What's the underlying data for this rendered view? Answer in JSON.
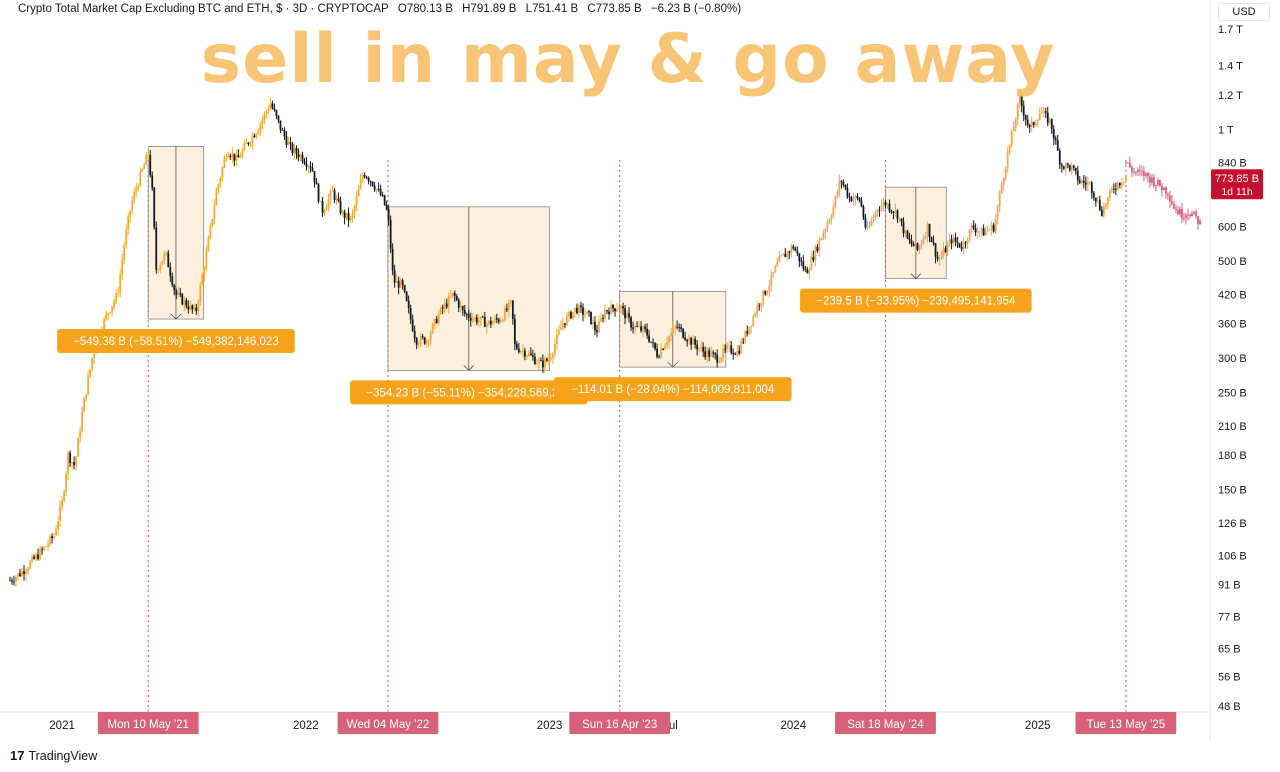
{
  "header": {
    "title": "Crypto Total Market Cap Excluding BTC and ETH, $ · 3D · CRYPTOCAP",
    "open_label": "O",
    "open": "780.13 B",
    "high_label": "H",
    "high": "791.89 B",
    "low_label": "L",
    "low": "751.41 B",
    "close_label": "C",
    "close": "773.85 B",
    "change": "−6.23 B (−0.80%)"
  },
  "overlay_title": "sell in may & go away",
  "currency": "USD",
  "price_badge": {
    "value": "773.85 B",
    "countdown": "1d 11h"
  },
  "footer": {
    "brand": "TradingView",
    "logo_glyph": "17"
  },
  "colors": {
    "accent": "#f7a21b",
    "candle": "#131722",
    "candle_up": "#f2a93b",
    "projection": "#d9607a",
    "vline": "#d9607a",
    "box_fill": "#fcefd9",
    "badge": "#c4102e"
  },
  "chart_data": {
    "type": "line",
    "title": "Crypto Total Market Cap Excluding BTC and ETH",
    "y_scale": "log",
    "ylim": [
      47,
      1800
    ],
    "y_ticks": [
      {
        "v": 1700,
        "label": "1.7 T"
      },
      {
        "v": 1400,
        "label": "1.4 T"
      },
      {
        "v": 1200,
        "label": "1.2 T"
      },
      {
        "v": 1000,
        "label": "1 T"
      },
      {
        "v": 840,
        "label": "840 B"
      },
      {
        "v": 600,
        "label": "600 B"
      },
      {
        "v": 500,
        "label": "500 B"
      },
      {
        "v": 420,
        "label": "420 B"
      },
      {
        "v": 360,
        "label": "360 B"
      },
      {
        "v": 300,
        "label": "300 B"
      },
      {
        "v": 250,
        "label": "250 B"
      },
      {
        "v": 210,
        "label": "210 B"
      },
      {
        "v": 180,
        "label": "180 B"
      },
      {
        "v": 150,
        "label": "150 B"
      },
      {
        "v": 126,
        "label": "126 B"
      },
      {
        "v": 106,
        "label": "106 B"
      },
      {
        "v": 91,
        "label": "91 B"
      },
      {
        "v": 77,
        "label": "77 B"
      },
      {
        "v": 65,
        "label": "65 B"
      },
      {
        "v": 56,
        "label": "56 B"
      },
      {
        "v": 48,
        "label": "48 B"
      }
    ],
    "x_range": [
      "2020-10-15",
      "2025-09-01"
    ],
    "x_ticks": [
      {
        "date": "2021-01-01",
        "label": "2021"
      },
      {
        "date": "2022-01-01",
        "label": "2022"
      },
      {
        "date": "2023-01-01",
        "label": "2023"
      },
      {
        "date": "2023-07-01",
        "label": "Jul"
      },
      {
        "date": "2024-01-01",
        "label": "2024"
      },
      {
        "date": "2025-01-01",
        "label": "2025"
      }
    ],
    "date_markers": [
      {
        "date": "2021-05-10",
        "label": "Mon 10 May '21"
      },
      {
        "date": "2022-05-04",
        "label": "Wed 04 May '22"
      },
      {
        "date": "2023-04-16",
        "label": "Sun 16 Apr '23"
      },
      {
        "date": "2024-05-18",
        "label": "Sat 18 May '24"
      },
      {
        "date": "2025-05-13",
        "label": "Tue 13 May '25"
      }
    ],
    "series": [
      {
        "values": [
          [
            "2020-10-15",
            93
          ],
          [
            "2020-11-01",
            97
          ],
          [
            "2020-11-20",
            104
          ],
          [
            "2020-12-05",
            110
          ],
          [
            "2020-12-20",
            118
          ],
          [
            "2021-01-01",
            140
          ],
          [
            "2021-01-10",
            180
          ],
          [
            "2021-01-20",
            170
          ],
          [
            "2021-02-01",
            230
          ],
          [
            "2021-02-15",
            300
          ],
          [
            "2021-02-25",
            340
          ],
          [
            "2021-03-10",
            380
          ],
          [
            "2021-03-25",
            420
          ],
          [
            "2021-04-05",
            560
          ],
          [
            "2021-04-15",
            680
          ],
          [
            "2021-04-25",
            760
          ],
          [
            "2021-05-10",
            880
          ],
          [
            "2021-05-16",
            720
          ],
          [
            "2021-05-22",
            480
          ],
          [
            "2021-06-05",
            520
          ],
          [
            "2021-06-20",
            420
          ],
          [
            "2021-07-05",
            400
          ],
          [
            "2021-07-20",
            380
          ],
          [
            "2021-08-05",
            520
          ],
          [
            "2021-08-20",
            720
          ],
          [
            "2021-09-05",
            900
          ],
          [
            "2021-09-20",
            850
          ],
          [
            "2021-10-05",
            930
          ],
          [
            "2021-10-20",
            1000
          ],
          [
            "2021-11-09",
            1150
          ],
          [
            "2021-11-25",
            1000
          ],
          [
            "2021-12-10",
            900
          ],
          [
            "2021-12-25",
            870
          ],
          [
            "2022-01-10",
            820
          ],
          [
            "2022-01-25",
            650
          ],
          [
            "2022-02-10",
            720
          ],
          [
            "2022-02-25",
            640
          ],
          [
            "2022-03-10",
            620
          ],
          [
            "2022-03-28",
            800
          ],
          [
            "2022-04-10",
            760
          ],
          [
            "2022-04-25",
            700
          ],
          [
            "2022-05-04",
            640
          ],
          [
            "2022-05-12",
            450
          ],
          [
            "2022-05-25",
            440
          ],
          [
            "2022-06-15",
            330
          ],
          [
            "2022-07-01",
            330
          ],
          [
            "2022-07-20",
            380
          ],
          [
            "2022-08-10",
            420
          ],
          [
            "2022-08-25",
            380
          ],
          [
            "2022-09-10",
            370
          ],
          [
            "2022-10-01",
            360
          ],
          [
            "2022-10-20",
            370
          ],
          [
            "2022-11-05",
            400
          ],
          [
            "2022-11-10",
            320
          ],
          [
            "2022-11-25",
            310
          ],
          [
            "2022-12-20",
            290
          ],
          [
            "2023-01-01",
            300
          ],
          [
            "2023-01-20",
            360
          ],
          [
            "2023-02-10",
            390
          ],
          [
            "2023-03-01",
            375
          ],
          [
            "2023-03-12",
            345
          ],
          [
            "2023-03-25",
            385
          ],
          [
            "2023-04-16",
            395
          ],
          [
            "2023-05-05",
            355
          ],
          [
            "2023-05-25",
            345
          ],
          [
            "2023-06-12",
            305
          ],
          [
            "2023-06-25",
            330
          ],
          [
            "2023-07-10",
            355
          ],
          [
            "2023-07-25",
            335
          ],
          [
            "2023-08-20",
            310
          ],
          [
            "2023-09-10",
            300
          ],
          [
            "2023-09-25",
            315
          ],
          [
            "2023-10-10",
            310
          ],
          [
            "2023-10-25",
            350
          ],
          [
            "2023-11-10",
            400
          ],
          [
            "2023-11-25",
            440
          ],
          [
            "2023-12-10",
            500
          ],
          [
            "2024-01-01",
            540
          ],
          [
            "2024-01-20",
            470
          ],
          [
            "2024-02-10",
            560
          ],
          [
            "2024-02-28",
            650
          ],
          [
            "2024-03-12",
            770
          ],
          [
            "2024-03-25",
            700
          ],
          [
            "2024-04-10",
            690
          ],
          [
            "2024-04-20",
            580
          ],
          [
            "2024-05-05",
            660
          ],
          [
            "2024-05-18",
            680
          ],
          [
            "2024-06-05",
            640
          ],
          [
            "2024-06-20",
            560
          ],
          [
            "2024-07-05",
            530
          ],
          [
            "2024-07-20",
            600
          ],
          [
            "2024-08-05",
            500
          ],
          [
            "2024-08-25",
            560
          ],
          [
            "2024-09-10",
            540
          ],
          [
            "2024-09-25",
            600
          ],
          [
            "2024-10-10",
            580
          ],
          [
            "2024-10-28",
            600
          ],
          [
            "2024-11-10",
            780
          ],
          [
            "2024-11-25",
            1000
          ],
          [
            "2024-12-05",
            1170
          ],
          [
            "2024-12-20",
            1000
          ],
          [
            "2025-01-05",
            1100
          ],
          [
            "2025-01-20",
            1040
          ],
          [
            "2025-02-05",
            830
          ],
          [
            "2025-02-20",
            820
          ],
          [
            "2025-03-05",
            760
          ],
          [
            "2025-03-20",
            750
          ],
          [
            "2025-04-07",
            650
          ],
          [
            "2025-04-25",
            740
          ],
          [
            "2025-05-13",
            780
          ]
        ]
      },
      {
        "values": [
          [
            "2025-05-13",
            840
          ],
          [
            "2025-05-25",
            800
          ],
          [
            "2025-06-10",
            790
          ],
          [
            "2025-06-25",
            760
          ],
          [
            "2025-07-05",
            740
          ],
          [
            "2025-07-15",
            720
          ],
          [
            "2025-07-25",
            660
          ],
          [
            "2025-08-05",
            640
          ],
          [
            "2025-08-15",
            650
          ],
          [
            "2025-08-25",
            630
          ],
          [
            "2025-09-01",
            610
          ]
        ]
      }
    ],
    "drawdowns": [
      {
        "start": "2021-05-10",
        "end": "2021-07-20",
        "from": 880,
        "to": 380,
        "label": "−549.38 B (−58.51%) −549,382,146,023"
      },
      {
        "start": "2022-05-04",
        "end": "2022-12-20",
        "from": 640,
        "to": 290,
        "label": "−354.23 B (−55.11%) −354,228,569,223"
      },
      {
        "start": "2023-04-16",
        "end": "2023-09-10",
        "from": 410,
        "to": 295,
        "label": "−114.01 B (−28.04%) −114,009,811,004"
      },
      {
        "start": "2024-05-18",
        "end": "2024-08-05",
        "from": 710,
        "to": 470,
        "label": "−239.5 B (−33.95%) −239,495,141,954"
      }
    ],
    "current_value": 773.85,
    "grid": false
  }
}
